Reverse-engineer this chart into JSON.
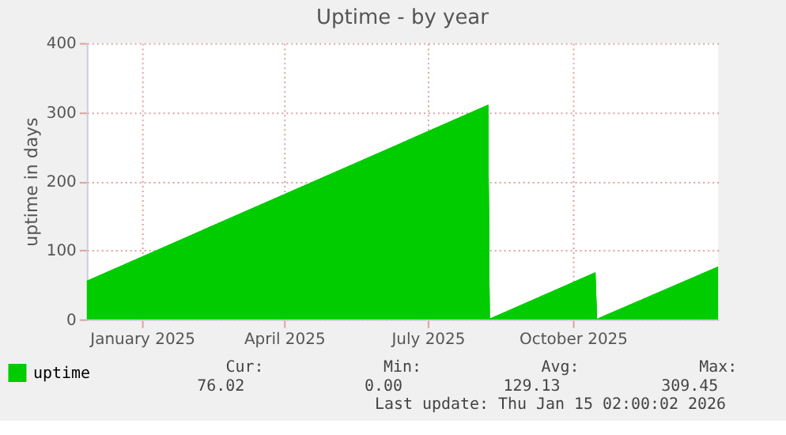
{
  "chart_data": {
    "type": "area",
    "title": "Uptime - by year",
    "ylabel": "uptime in days",
    "x": [
      "2024-12-11",
      "2025-08-22",
      "2025-08-23",
      "2025-10-29",
      "2025-10-30",
      "2026-01-15"
    ],
    "series": [
      {
        "name": "uptime",
        "color": "#00cc00",
        "values": [
          55,
          309.45,
          0,
          67,
          0,
          76.02
        ]
      }
    ],
    "xlim": [
      "2024-12-11",
      "2026-01-15"
    ],
    "xticks": [
      {
        "value": "2025-01-15",
        "label": "January 2025"
      },
      {
        "value": "2025-04-15",
        "label": "April 2025"
      },
      {
        "value": "2025-07-15",
        "label": "July 2025"
      },
      {
        "value": "2025-10-15",
        "label": "October 2025"
      }
    ],
    "ylim": [
      0,
      400
    ],
    "yticks": [
      0,
      100,
      200,
      300,
      400
    ],
    "grid": true,
    "legend": "bottom left",
    "annotations": [
      "Cur:",
      "Min:",
      "Avg:",
      "Max:",
      "76.02",
      "0.00",
      "129.13",
      "309.45",
      "Last update: Thu Jan 15 02:00:02 2026"
    ]
  }
}
